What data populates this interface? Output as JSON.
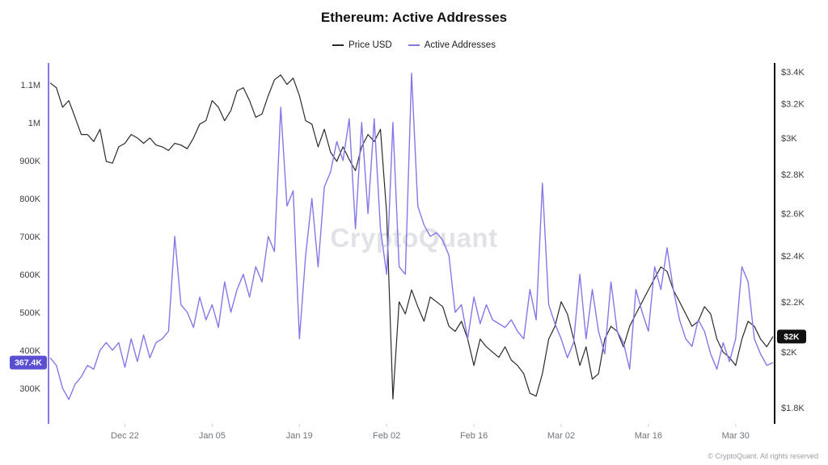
{
  "title": "Ethereum: Active Addresses",
  "watermark": "CryptoQuant",
  "footer": "© CryptoQuant. All rights reserved",
  "legend": {
    "items": [
      {
        "label": "Price USD",
        "color": "#2b2b2b"
      },
      {
        "label": "Active Addresses",
        "color": "#8478e8"
      }
    ]
  },
  "chart_data": {
    "type": "line",
    "title": "Ethereum: Active Addresses",
    "grid": false,
    "legend_position": "top-center",
    "x_ticks": [
      {
        "index": 12,
        "label": "Dec 22"
      },
      {
        "index": 26,
        "label": "Jan 05"
      },
      {
        "index": 40,
        "label": "Jan 19"
      },
      {
        "index": 54,
        "label": "Feb 02"
      },
      {
        "index": 68,
        "label": "Feb 16"
      },
      {
        "index": 82,
        "label": "Mar 02"
      },
      {
        "index": 96,
        "label": "Mar 16"
      },
      {
        "index": 110,
        "label": "Mar 30"
      }
    ],
    "left_axis": {
      "label": "Active Addresses",
      "unit": "thousands of addresses",
      "scale": "linear",
      "color": "#8478e8",
      "range_k": [
        206,
        1157
      ],
      "ticks": [
        {
          "value": 1100,
          "label": "1.1M"
        },
        {
          "value": 1000,
          "label": "1M"
        },
        {
          "value": 900,
          "label": "900K"
        },
        {
          "value": 800,
          "label": "800K"
        },
        {
          "value": 700,
          "label": "700K"
        },
        {
          "value": 600,
          "label": "600K"
        },
        {
          "value": 500,
          "label": "500K"
        },
        {
          "value": 400,
          "label": "400K"
        },
        {
          "value": 300,
          "label": "300K"
        }
      ]
    },
    "right_axis": {
      "label": "Price USD",
      "unit": "USD",
      "scale": "log",
      "color": "#111111",
      "range_usd": [
        1746,
        3458
      ],
      "ticks": [
        {
          "value": 3400,
          "label": "$3.4K"
        },
        {
          "value": 3200,
          "label": "$3.2K"
        },
        {
          "value": 3000,
          "label": "$3K"
        },
        {
          "value": 2800,
          "label": "$2.8K"
        },
        {
          "value": 2600,
          "label": "$2.6K"
        },
        {
          "value": 2400,
          "label": "$2.4K"
        },
        {
          "value": 2200,
          "label": "$2.2K"
        },
        {
          "value": 2000,
          "label": "$2K"
        },
        {
          "value": 1800,
          "label": "$1.8K"
        }
      ]
    },
    "series": [
      {
        "name": "Price USD",
        "axis": "right",
        "color": "#2b2b2b",
        "stroke_width": 1.2,
        "values": [
          3330,
          3300,
          3180,
          3220,
          3120,
          3020,
          3020,
          2980,
          3050,
          2870,
          2860,
          2950,
          2970,
          3020,
          3000,
          2970,
          3000,
          2960,
          2950,
          2930,
          2970,
          2960,
          2940,
          3000,
          3080,
          3100,
          3220,
          3180,
          3100,
          3160,
          3280,
          3300,
          3220,
          3120,
          3140,
          3250,
          3350,
          3380,
          3320,
          3360,
          3250,
          3100,
          3080,
          2950,
          3050,
          2920,
          2870,
          2950,
          2880,
          2820,
          2950,
          3020,
          2980,
          3050,
          2600,
          1830,
          2200,
          2150,
          2250,
          2180,
          2120,
          2220,
          2200,
          2180,
          2100,
          2080,
          2120,
          2050,
          1950,
          2050,
          2020,
          2000,
          1980,
          2020,
          1970,
          1950,
          1920,
          1850,
          1840,
          1920,
          2050,
          2100,
          2200,
          2150,
          2050,
          1950,
          2020,
          1900,
          1920,
          2050,
          2100,
          2080,
          2020,
          2100,
          2150,
          2200,
          2250,
          2300,
          2350,
          2330,
          2250,
          2200,
          2150,
          2100,
          2120,
          2180,
          2150,
          2050,
          2000,
          1980,
          1950,
          2050,
          2120,
          2100,
          2050,
          2020,
          2060
        ]
      },
      {
        "name": "Active Addresses",
        "axis": "left",
        "color": "#8478e8",
        "stroke_width": 1.4,
        "values": [
          380,
          360,
          300,
          270,
          310,
          330,
          360,
          350,
          400,
          420,
          400,
          420,
          355,
          430,
          370,
          440,
          380,
          420,
          430,
          450,
          700,
          520,
          500,
          460,
          540,
          480,
          520,
          460,
          580,
          500,
          560,
          600,
          540,
          620,
          580,
          700,
          660,
          1040,
          780,
          820,
          430,
          650,
          800,
          620,
          830,
          870,
          950,
          900,
          1010,
          720,
          1000,
          760,
          1010,
          720,
          600,
          1000,
          620,
          600,
          1130,
          780,
          730,
          700,
          710,
          690,
          650,
          500,
          520,
          430,
          540,
          470,
          520,
          480,
          470,
          460,
          480,
          450,
          430,
          560,
          480,
          840,
          520,
          470,
          430,
          380,
          420,
          600,
          430,
          560,
          450,
          390,
          580,
          450,
          420,
          350,
          560,
          500,
          450,
          620,
          560,
          670,
          560,
          480,
          430,
          410,
          480,
          450,
          390,
          350,
          420,
          370,
          430,
          620,
          580,
          430,
          390,
          360,
          367.4
        ]
      }
    ],
    "current_value_badges": [
      {
        "series": "Active Addresses",
        "axis": "left",
        "value": 367.4,
        "label": "367.4K",
        "color": "#5b4fd1"
      },
      {
        "series": "Price USD",
        "axis": "right",
        "value": 2060,
        "label": "$2K",
        "color": "#111111"
      }
    ]
  }
}
